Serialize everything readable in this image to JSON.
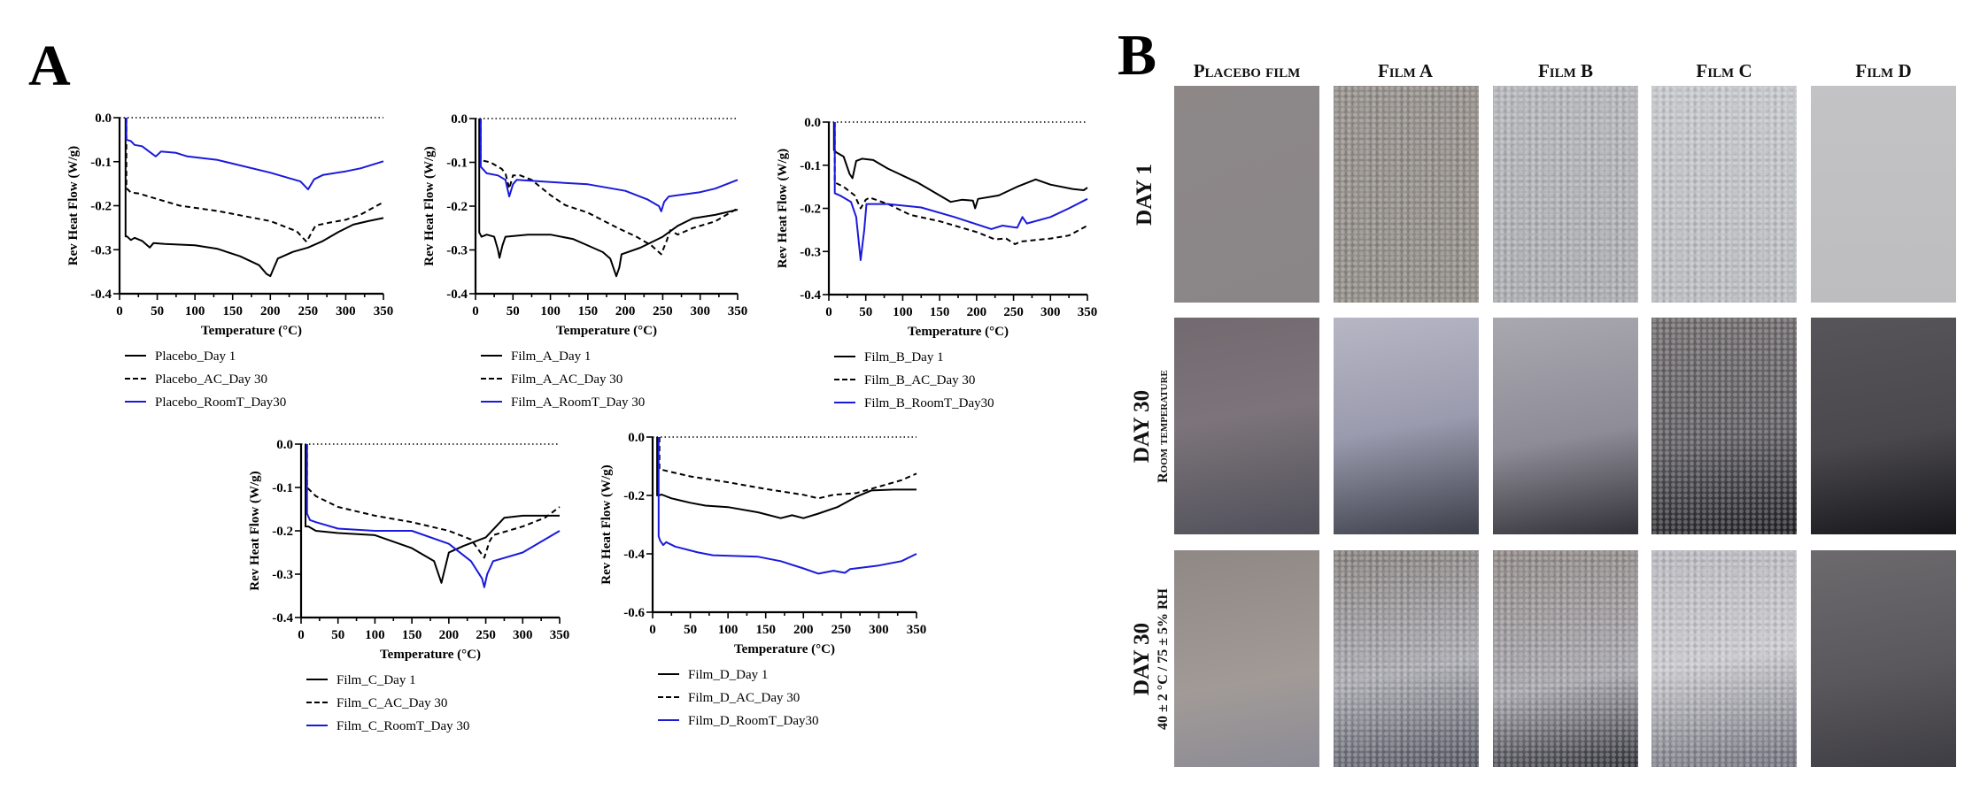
{
  "panels": {
    "a_label": "A",
    "b_label": "B"
  },
  "micrographs": {
    "columns": [
      "Placebo film",
      "Film A",
      "Film B",
      "Film C",
      "Film D"
    ],
    "rows": [
      {
        "main": "DAY 1",
        "sub": ""
      },
      {
        "main": "DAY 30",
        "sub": "Room temperature"
      },
      {
        "main": "DAY 30",
        "sub": "40 ± 2 °C / 75 ± 5% RH"
      }
    ]
  },
  "chart_data": [
    {
      "type": "line",
      "xlabel": "Temperature (°C)",
      "ylabel": "Rev Heat Flow (W/g)",
      "xlim": [
        0,
        350
      ],
      "ylim": [
        -0.4,
        0.0
      ],
      "xticks": [
        0,
        50,
        100,
        150,
        200,
        250,
        300,
        350
      ],
      "yticks": [
        "0.0",
        "-0.1",
        "-0.2",
        "-0.3",
        "-0.4"
      ],
      "reference_line_y": 0.0,
      "legend": "bottom",
      "series": [
        {
          "name": "Placebo_Day 1",
          "style": "solid",
          "color": "#000000",
          "x": [
            8,
            8,
            10,
            15,
            20,
            30,
            40,
            45,
            60,
            100,
            130,
            160,
            185,
            195,
            200,
            205,
            210,
            230,
            250,
            270,
            290,
            310,
            330,
            350
          ],
          "y": [
            0,
            -0.27,
            -0.27,
            -0.278,
            -0.273,
            -0.28,
            -0.295,
            -0.285,
            -0.287,
            -0.29,
            -0.298,
            -0.315,
            -0.335,
            -0.355,
            -0.36,
            -0.34,
            -0.32,
            -0.305,
            -0.295,
            -0.28,
            -0.26,
            -0.243,
            -0.235,
            -0.228
          ]
        },
        {
          "name": "Placebo_AC_Day 30",
          "style": "dashed",
          "color": "#000000",
          "x": [
            9,
            9,
            15,
            25,
            50,
            80,
            130,
            200,
            235,
            248,
            255,
            260,
            280,
            300,
            320,
            350
          ],
          "y": [
            0,
            -0.16,
            -0.17,
            -0.172,
            -0.185,
            -0.2,
            -0.212,
            -0.235,
            -0.258,
            -0.282,
            -0.26,
            -0.245,
            -0.238,
            -0.232,
            -0.22,
            -0.192
          ]
        },
        {
          "name": "Placebo_RoomT_Day30",
          "style": "solid",
          "color": "#1a1adb",
          "x": [
            9,
            9,
            15,
            20,
            30,
            40,
            48,
            55,
            75,
            90,
            130,
            200,
            240,
            250,
            258,
            270,
            300,
            320,
            350
          ],
          "y": [
            0,
            -0.05,
            -0.053,
            -0.062,
            -0.065,
            -0.078,
            -0.088,
            -0.077,
            -0.08,
            -0.088,
            -0.096,
            -0.125,
            -0.145,
            -0.163,
            -0.14,
            -0.13,
            -0.122,
            -0.115,
            -0.099
          ]
        }
      ]
    },
    {
      "type": "line",
      "xlabel": "Temperature (°C)",
      "ylabel": "Rev Heat Flow (W/g)",
      "xlim": [
        0,
        350
      ],
      "ylim": [
        -0.4,
        0.0
      ],
      "xticks": [
        0,
        50,
        100,
        150,
        200,
        250,
        300,
        350
      ],
      "yticks": [
        "0.0",
        "-0.1",
        "-0.2",
        "-0.3",
        "-0.4"
      ],
      "reference_line_y": 0.0,
      "legend": "bottom",
      "series": [
        {
          "name": "Film_A_Day 1",
          "style": "solid",
          "color": "#000000",
          "x": [
            5,
            5,
            8,
            15,
            25,
            30,
            32,
            36,
            40,
            70,
            100,
            130,
            150,
            170,
            180,
            188,
            192,
            195,
            220,
            250,
            270,
            290,
            320,
            350
          ],
          "y": [
            0,
            -0.26,
            -0.27,
            -0.265,
            -0.27,
            -0.3,
            -0.318,
            -0.29,
            -0.27,
            -0.265,
            -0.265,
            -0.275,
            -0.29,
            -0.305,
            -0.32,
            -0.36,
            -0.34,
            -0.31,
            -0.295,
            -0.27,
            -0.245,
            -0.228,
            -0.22,
            -0.208
          ]
        },
        {
          "name": "Film_A_AC_Day 30",
          "style": "dashed",
          "color": "#000000",
          "x": [
            7,
            7,
            20,
            35,
            40,
            45,
            50,
            60,
            75,
            100,
            120,
            150,
            190,
            215,
            235,
            248,
            255,
            260,
            270,
            290,
            320,
            350
          ],
          "y": [
            0,
            -0.095,
            -0.1,
            -0.115,
            -0.125,
            -0.16,
            -0.13,
            -0.13,
            -0.14,
            -0.175,
            -0.198,
            -0.215,
            -0.25,
            -0.27,
            -0.29,
            -0.31,
            -0.28,
            -0.255,
            -0.265,
            -0.25,
            -0.235,
            -0.205
          ]
        },
        {
          "name": "Film_A_RoomT_Day 30",
          "style": "solid",
          "color": "#1a1adb",
          "x": [
            7,
            7,
            15,
            30,
            40,
            45,
            50,
            55,
            100,
            150,
            200,
            230,
            245,
            248,
            252,
            258,
            300,
            320,
            350
          ],
          "y": [
            0,
            -0.11,
            -0.125,
            -0.13,
            -0.14,
            -0.178,
            -0.15,
            -0.14,
            -0.145,
            -0.15,
            -0.165,
            -0.185,
            -0.2,
            -0.212,
            -0.19,
            -0.178,
            -0.168,
            -0.16,
            -0.14
          ]
        }
      ]
    },
    {
      "type": "line",
      "xlabel": "Temperature (°C)",
      "ylabel": "Rev Heat Flow (W/g)",
      "xlim": [
        0,
        350
      ],
      "ylim": [
        -0.4,
        0.0
      ],
      "xticks": [
        0,
        50,
        100,
        150,
        200,
        250,
        300,
        350
      ],
      "yticks": [
        "0.0",
        "-0.1",
        "-0.2",
        "-0.3",
        "-0.4"
      ],
      "reference_line_y": 0.0,
      "legend": "bottom",
      "series": [
        {
          "name": "Film_B_Day 1",
          "style": "solid",
          "color": "#000000",
          "x": [
            7,
            7,
            10,
            20,
            28,
            32,
            37,
            45,
            60,
            80,
            120,
            150,
            165,
            180,
            195,
            198,
            202,
            230,
            255,
            280,
            300,
            330,
            345,
            350
          ],
          "y": [
            0,
            -0.065,
            -0.07,
            -0.08,
            -0.12,
            -0.13,
            -0.09,
            -0.085,
            -0.088,
            -0.108,
            -0.14,
            -0.17,
            -0.185,
            -0.18,
            -0.182,
            -0.2,
            -0.178,
            -0.17,
            -0.15,
            -0.133,
            -0.145,
            -0.155,
            -0.158,
            -0.152
          ]
        },
        {
          "name": "Film_B_AC_Day 30",
          "style": "dashed",
          "color": "#000000",
          "x": [
            8,
            8,
            20,
            35,
            43,
            50,
            55,
            80,
            110,
            150,
            200,
            225,
            240,
            252,
            260,
            300,
            325,
            350
          ],
          "y": [
            0,
            -0.14,
            -0.15,
            -0.17,
            -0.2,
            -0.18,
            -0.175,
            -0.19,
            -0.215,
            -0.23,
            -0.255,
            -0.272,
            -0.27,
            -0.283,
            -0.277,
            -0.27,
            -0.263,
            -0.24
          ]
        },
        {
          "name": "Film_B_RoomT_Day30",
          "style": "solid",
          "color": "#1a1adb",
          "x": [
            8,
            8,
            15,
            30,
            37,
            43,
            48,
            51,
            80,
            125,
            170,
            220,
            235,
            255,
            262,
            268,
            300,
            325,
            350
          ],
          "y": [
            0,
            -0.165,
            -0.17,
            -0.185,
            -0.22,
            -0.32,
            -0.25,
            -0.19,
            -0.19,
            -0.198,
            -0.22,
            -0.248,
            -0.24,
            -0.245,
            -0.22,
            -0.235,
            -0.22,
            -0.2,
            -0.178
          ]
        }
      ]
    },
    {
      "type": "line",
      "xlabel": "Temperature (°C)",
      "ylabel": "Rev Heat Flow (W/g)",
      "xlim": [
        0,
        350
      ],
      "ylim": [
        -0.4,
        0.0
      ],
      "xticks": [
        0,
        50,
        100,
        150,
        200,
        250,
        300,
        350
      ],
      "yticks": [
        "0.0",
        "-0.1",
        "-0.2",
        "-0.3",
        "-0.4"
      ],
      "reference_line_y": 0.0,
      "legend": "bottom",
      "series": [
        {
          "name": "Film_C_Day 1",
          "style": "solid",
          "color": "#000000",
          "x": [
            6,
            6,
            10,
            20,
            50,
            100,
            150,
            180,
            190,
            200,
            220,
            250,
            275,
            300,
            350
          ],
          "y": [
            0,
            -0.19,
            -0.19,
            -0.2,
            -0.205,
            -0.21,
            -0.24,
            -0.27,
            -0.32,
            -0.25,
            -0.235,
            -0.215,
            -0.17,
            -0.165,
            -0.165
          ]
        },
        {
          "name": "Film_C_AC_Day 30",
          "style": "dashed",
          "color": "#000000",
          "x": [
            8,
            8,
            20,
            50,
            100,
            150,
            200,
            230,
            248,
            255,
            260,
            300,
            330,
            350
          ],
          "y": [
            0,
            -0.1,
            -0.12,
            -0.145,
            -0.165,
            -0.18,
            -0.2,
            -0.22,
            -0.262,
            -0.225,
            -0.21,
            -0.19,
            -0.17,
            -0.145
          ]
        },
        {
          "name": "Film_C_RoomT_Day 30",
          "style": "solid",
          "color": "#1a1adb",
          "x": [
            8,
            8,
            12,
            20,
            50,
            100,
            150,
            200,
            230,
            245,
            248,
            252,
            260,
            300,
            350
          ],
          "y": [
            0,
            -0.16,
            -0.175,
            -0.18,
            -0.195,
            -0.2,
            -0.2,
            -0.23,
            -0.27,
            -0.31,
            -0.33,
            -0.3,
            -0.27,
            -0.25,
            -0.2
          ]
        }
      ]
    },
    {
      "type": "line",
      "xlabel": "Temperature (°C)",
      "ylabel": "Rev Heat Flow (W/g)",
      "xlim": [
        0,
        350
      ],
      "ylim": [
        -0.6,
        0.0
      ],
      "xticks": [
        0,
        50,
        100,
        150,
        200,
        250,
        300,
        350
      ],
      "yticks": [
        "0.0",
        "-0.2",
        "-0.4",
        "-0.6"
      ],
      "reference_line_y": 0.0,
      "legend": "bottom",
      "series": [
        {
          "name": "Film_D_Day 1",
          "style": "solid",
          "color": "#000000",
          "x": [
            6,
            6,
            8,
            12,
            25,
            50,
            70,
            100,
            140,
            170,
            185,
            200,
            220,
            245,
            270,
            290,
            320,
            350
          ],
          "y": [
            0,
            -0.2,
            -0.2,
            -0.197,
            -0.21,
            -0.225,
            -0.235,
            -0.24,
            -0.258,
            -0.278,
            -0.268,
            -0.278,
            -0.262,
            -0.24,
            -0.205,
            -0.183,
            -0.18,
            -0.18
          ]
        },
        {
          "name": "Film_D_AC_Day 30",
          "style": "dashed",
          "color": "#000000",
          "x": [
            9,
            9,
            25,
            50,
            100,
            150,
            200,
            220,
            240,
            270,
            300,
            330,
            350
          ],
          "y": [
            0,
            -0.11,
            -0.12,
            -0.135,
            -0.155,
            -0.178,
            -0.198,
            -0.21,
            -0.198,
            -0.192,
            -0.17,
            -0.148,
            -0.125
          ]
        },
        {
          "name": "Film_D_RoomT_Day30",
          "style": "solid",
          "color": "#1a1adb",
          "x": [
            8,
            8,
            10,
            14,
            18,
            30,
            60,
            80,
            140,
            170,
            200,
            220,
            240,
            255,
            262,
            300,
            330,
            350
          ],
          "y": [
            0,
            -0.34,
            -0.355,
            -0.37,
            -0.36,
            -0.375,
            -0.395,
            -0.405,
            -0.41,
            -0.425,
            -0.45,
            -0.468,
            -0.458,
            -0.465,
            -0.452,
            -0.44,
            -0.425,
            -0.4
          ]
        }
      ]
    }
  ]
}
